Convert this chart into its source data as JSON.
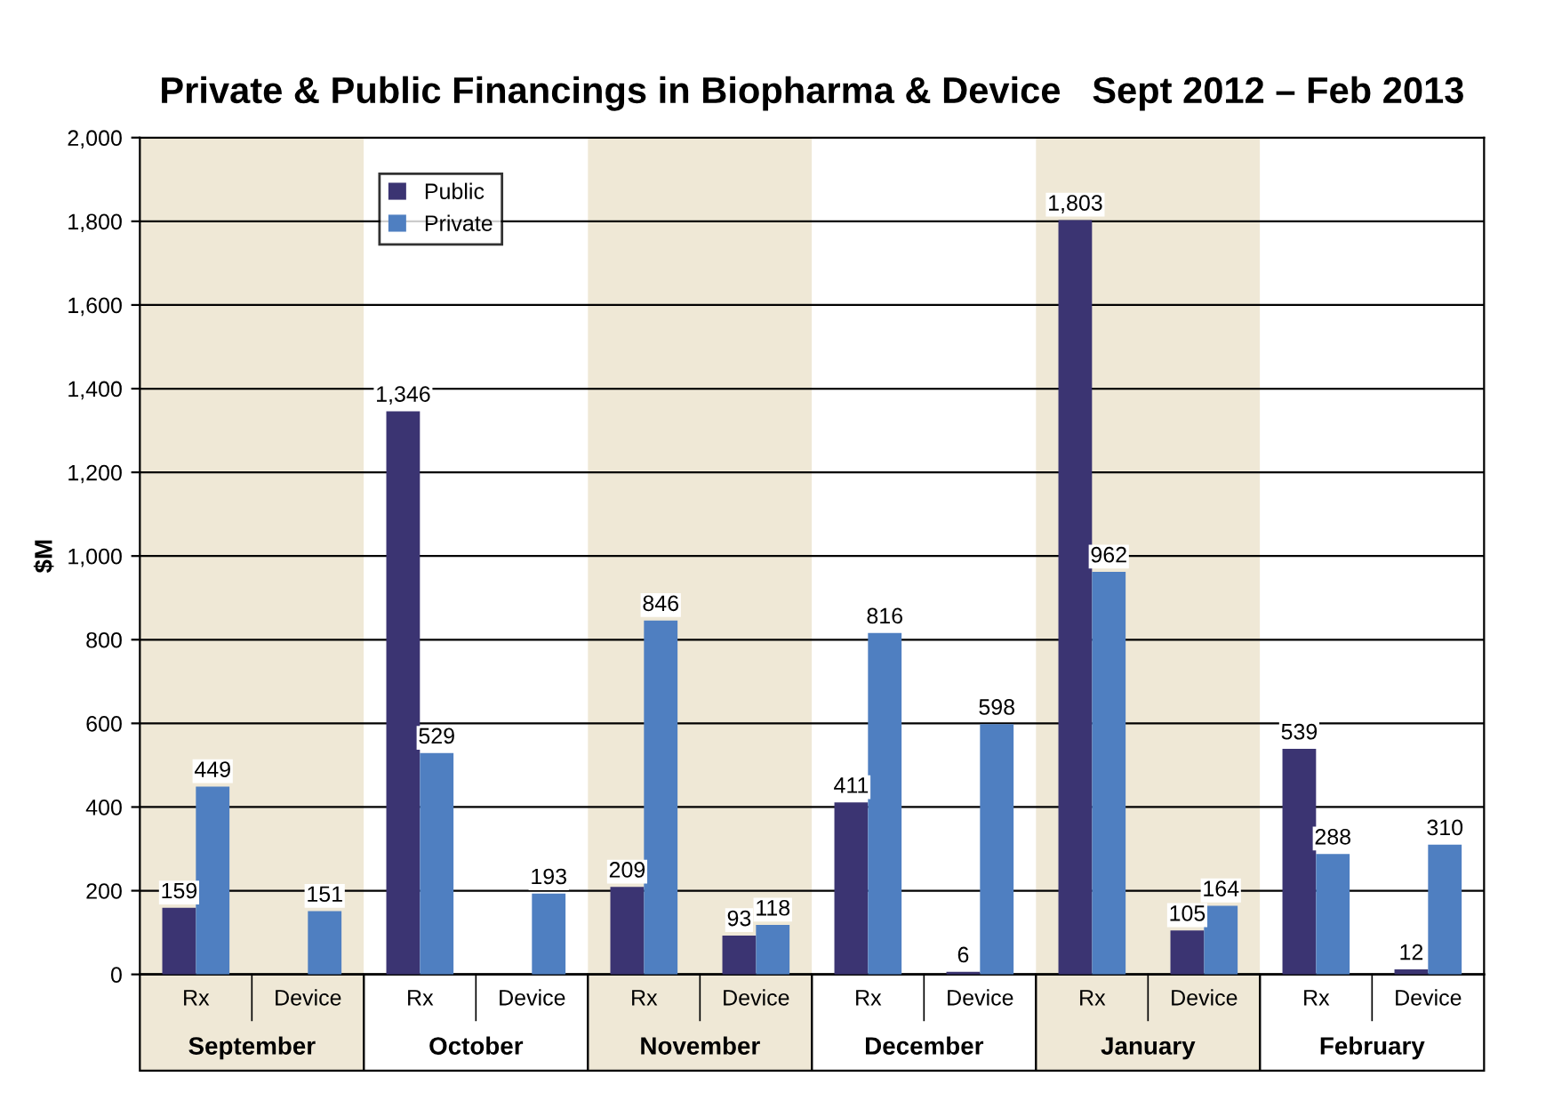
{
  "chart_data": {
    "type": "bar",
    "title": "Private & Public Financings in Biopharma & Device   Sept 2012 – Feb 2013",
    "ylabel": "$M",
    "categories": [
      "Rx",
      "Device",
      "Rx",
      "Device",
      "Rx",
      "Device",
      "Rx",
      "Device",
      "Rx",
      "Device",
      "Rx",
      "Device"
    ],
    "series": [
      {
        "name": "Public",
        "color": "#3b3472",
        "values": [
          159,
          null,
          1346,
          null,
          209,
          93,
          411,
          6,
          1803,
          105,
          539,
          12
        ],
        "value_labels": [
          "159",
          null,
          "1,346",
          null,
          "209",
          "93",
          "411",
          "6",
          "1,803",
          "105",
          "539",
          "12"
        ]
      },
      {
        "name": "Private",
        "color": "#4f7fc1",
        "values": [
          449,
          151,
          529,
          193,
          846,
          118,
          816,
          598,
          962,
          164,
          288,
          310
        ],
        "value_labels": [
          "449",
          "151",
          "529",
          "193",
          "846",
          "118",
          "816",
          "598",
          "962",
          "164",
          "288",
          "310"
        ]
      }
    ],
    "annotations": [
      "September",
      "October",
      "November",
      "December",
      "January",
      "February"
    ],
    "ylim": [
      0,
      2000
    ],
    "yticks": [
      0,
      200,
      400,
      600,
      800,
      {
        "value": 1000,
        "label": "1,000"
      },
      {
        "value": 1200,
        "label": "1,200"
      },
      {
        "value": 1400,
        "label": "1,400"
      },
      {
        "value": 1600,
        "label": "1,600"
      },
      {
        "value": 1800,
        "label": "1,800"
      },
      {
        "value": 2000,
        "label": "2,000"
      }
    ],
    "grid": "y",
    "legend": "top left"
  }
}
